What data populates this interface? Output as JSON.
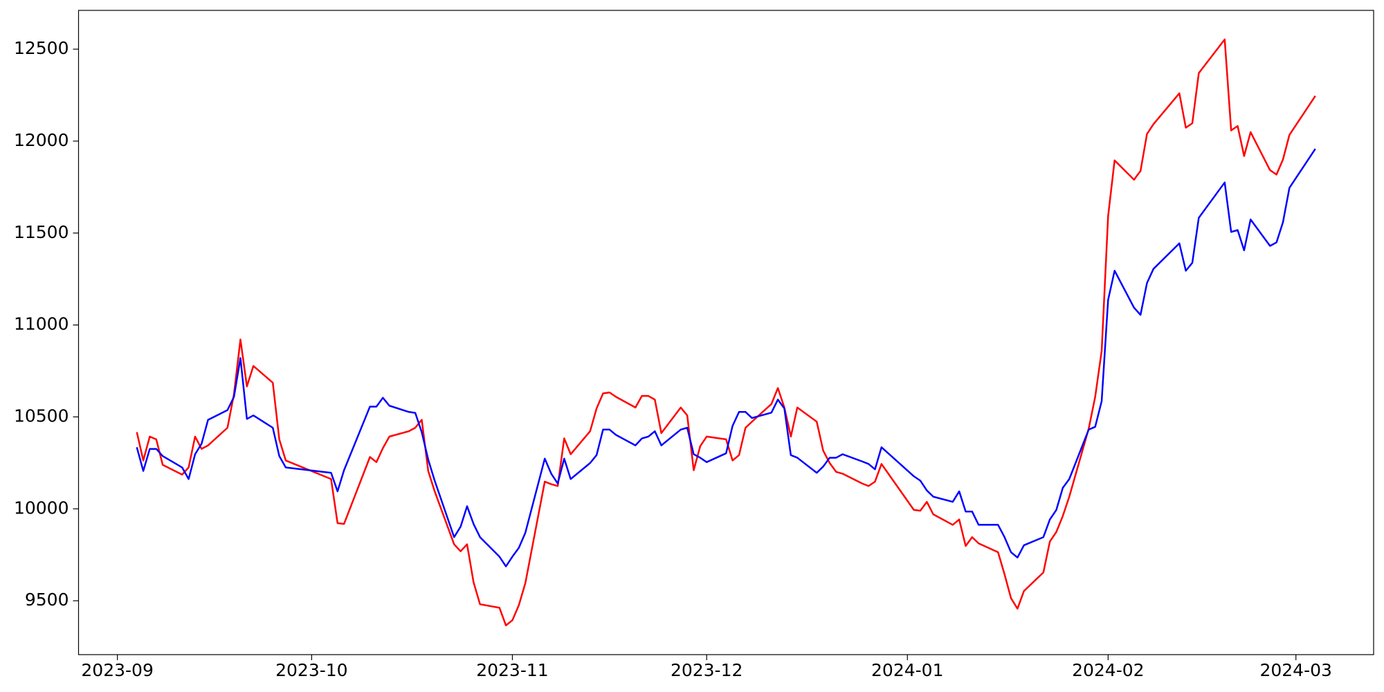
{
  "chart_data": {
    "type": "line",
    "x": [
      "2023-09-04",
      "2023-09-05",
      "2023-09-06",
      "2023-09-07",
      "2023-09-08",
      "2023-09-11",
      "2023-09-12",
      "2023-09-13",
      "2023-09-14",
      "2023-09-15",
      "2023-09-18",
      "2023-09-19",
      "2023-09-20",
      "2023-09-21",
      "2023-09-22",
      "2023-09-25",
      "2023-09-26",
      "2023-09-27",
      "2023-10-04",
      "2023-10-05",
      "2023-10-06",
      "2023-10-10",
      "2023-10-11",
      "2023-10-12",
      "2023-10-13",
      "2023-10-16",
      "2023-10-17",
      "2023-10-18",
      "2023-10-19",
      "2023-10-20",
      "2023-10-23",
      "2023-10-24",
      "2023-10-25",
      "2023-10-26",
      "2023-10-27",
      "2023-10-30",
      "2023-10-31",
      "2023-11-01",
      "2023-11-02",
      "2023-11-03",
      "2023-11-06",
      "2023-11-07",
      "2023-11-08",
      "2023-11-09",
      "2023-11-10",
      "2023-11-13",
      "2023-11-14",
      "2023-11-15",
      "2023-11-16",
      "2023-11-17",
      "2023-11-20",
      "2023-11-21",
      "2023-11-22",
      "2023-11-23",
      "2023-11-24",
      "2023-11-27",
      "2023-11-28",
      "2023-11-29",
      "2023-11-30",
      "2023-12-01",
      "2023-12-04",
      "2023-12-05",
      "2023-12-06",
      "2023-12-07",
      "2023-12-08",
      "2023-12-11",
      "2023-12-12",
      "2023-12-13",
      "2023-12-14",
      "2023-12-15",
      "2023-12-18",
      "2023-12-19",
      "2023-12-20",
      "2023-12-21",
      "2023-12-22",
      "2023-12-25",
      "2023-12-26",
      "2023-12-27",
      "2023-12-28",
      "2024-01-02",
      "2024-01-03",
      "2024-01-04",
      "2024-01-05",
      "2024-01-08",
      "2024-01-09",
      "2024-01-10",
      "2024-01-11",
      "2024-01-12",
      "2024-01-15",
      "2024-01-16",
      "2024-01-17",
      "2024-01-18",
      "2024-01-19",
      "2024-01-22",
      "2024-01-23",
      "2024-01-24",
      "2024-01-25",
      "2024-01-26",
      "2024-01-29",
      "2024-01-30",
      "2024-01-31",
      "2024-02-01",
      "2024-02-02",
      "2024-02-05",
      "2024-02-06",
      "2024-02-07",
      "2024-02-08",
      "2024-02-12",
      "2024-02-13",
      "2024-02-14",
      "2024-02-15",
      "2024-02-19",
      "2024-02-20",
      "2024-02-21",
      "2024-02-22",
      "2024-02-23",
      "2024-02-26",
      "2024-02-27",
      "2024-02-28",
      "2024-02-29",
      "2024-03-04"
    ],
    "series": [
      {
        "color": "#ff0000",
        "values": [
          10417,
          10263,
          10393,
          10378,
          10239,
          10186,
          10225,
          10393,
          10326,
          10345,
          10441,
          10623,
          10921,
          10666,
          10777,
          10686,
          10378,
          10263,
          10162,
          9922,
          9918,
          10282,
          10254,
          10330,
          10393,
          10422,
          10441,
          10484,
          10206,
          10095,
          9807,
          9769,
          9807,
          9601,
          9481,
          9462,
          9366,
          9394,
          9476,
          9596,
          10148,
          10134,
          10124,
          10383,
          10297,
          10422,
          10546,
          10628,
          10633,
          10609,
          10551,
          10614,
          10614,
          10594,
          10412,
          10551,
          10508,
          10210,
          10340,
          10393,
          10378,
          10263,
          10292,
          10441,
          10474,
          10570,
          10657,
          10551,
          10393,
          10551,
          10474,
          10316,
          10249,
          10201,
          10191,
          10138,
          10124,
          10148,
          10244,
          9994,
          9990,
          10038,
          9970,
          9913,
          9942,
          9798,
          9846,
          9812,
          9764,
          9644,
          9514,
          9457,
          9553,
          9654,
          9822,
          9874,
          9961,
          10066,
          10436,
          10609,
          10858,
          11593,
          11895,
          11790,
          11838,
          12039,
          12092,
          12260,
          12073,
          12097,
          12370,
          12553,
          12058,
          12082,
          11919,
          12049,
          11842,
          11818,
          11900,
          12034,
          12246
        ]
      },
      {
        "color": "#0000ff",
        "values": [
          10335,
          10206,
          10326,
          10326,
          10287,
          10225,
          10162,
          10297,
          10354,
          10484,
          10537,
          10609,
          10820,
          10489,
          10508,
          10441,
          10287,
          10225,
          10196,
          10095,
          10210,
          10556,
          10556,
          10604,
          10561,
          10527,
          10522,
          10417,
          10268,
          10153,
          9846,
          9903,
          10014,
          9918,
          9846,
          9740,
          9687,
          9740,
          9788,
          9870,
          10273,
          10191,
          10138,
          10273,
          10162,
          10249,
          10292,
          10431,
          10431,
          10402,
          10345,
          10383,
          10393,
          10422,
          10345,
          10431,
          10441,
          10297,
          10278,
          10254,
          10302,
          10451,
          10527,
          10527,
          10494,
          10523,
          10594,
          10546,
          10292,
          10278,
          10196,
          10230,
          10278,
          10278,
          10297,
          10258,
          10244,
          10215,
          10335,
          10177,
          10153,
          10100,
          10066,
          10038,
          10095,
          9985,
          9985,
          9913,
          9913,
          9846,
          9764,
          9735,
          9802,
          9846,
          9942,
          9994,
          10114,
          10162,
          10431,
          10446,
          10585,
          11137,
          11295,
          11094,
          11055,
          11228,
          11305,
          11444,
          11295,
          11338,
          11583,
          11775,
          11506,
          11516,
          11406,
          11574,
          11430,
          11449,
          11559,
          11746,
          11958
        ]
      }
    ],
    "xlim": [
      "2023-08-26",
      "2024-03-13"
    ],
    "xticks": [
      {
        "value": "2023-09-01",
        "label": "2023-09"
      },
      {
        "value": "2023-10-01",
        "label": "2023-10"
      },
      {
        "value": "2023-11-01",
        "label": "2023-11"
      },
      {
        "value": "2023-12-01",
        "label": "2023-12"
      },
      {
        "value": "2024-01-01",
        "label": "2024-01"
      },
      {
        "value": "2024-02-01",
        "label": "2024-02"
      },
      {
        "value": "2024-03-01",
        "label": "2024-03"
      }
    ],
    "ylim": [
      9207,
      12711
    ],
    "yticks": [
      9500,
      10000,
      10500,
      11000,
      11500,
      12000,
      12500
    ],
    "grid": false
  }
}
